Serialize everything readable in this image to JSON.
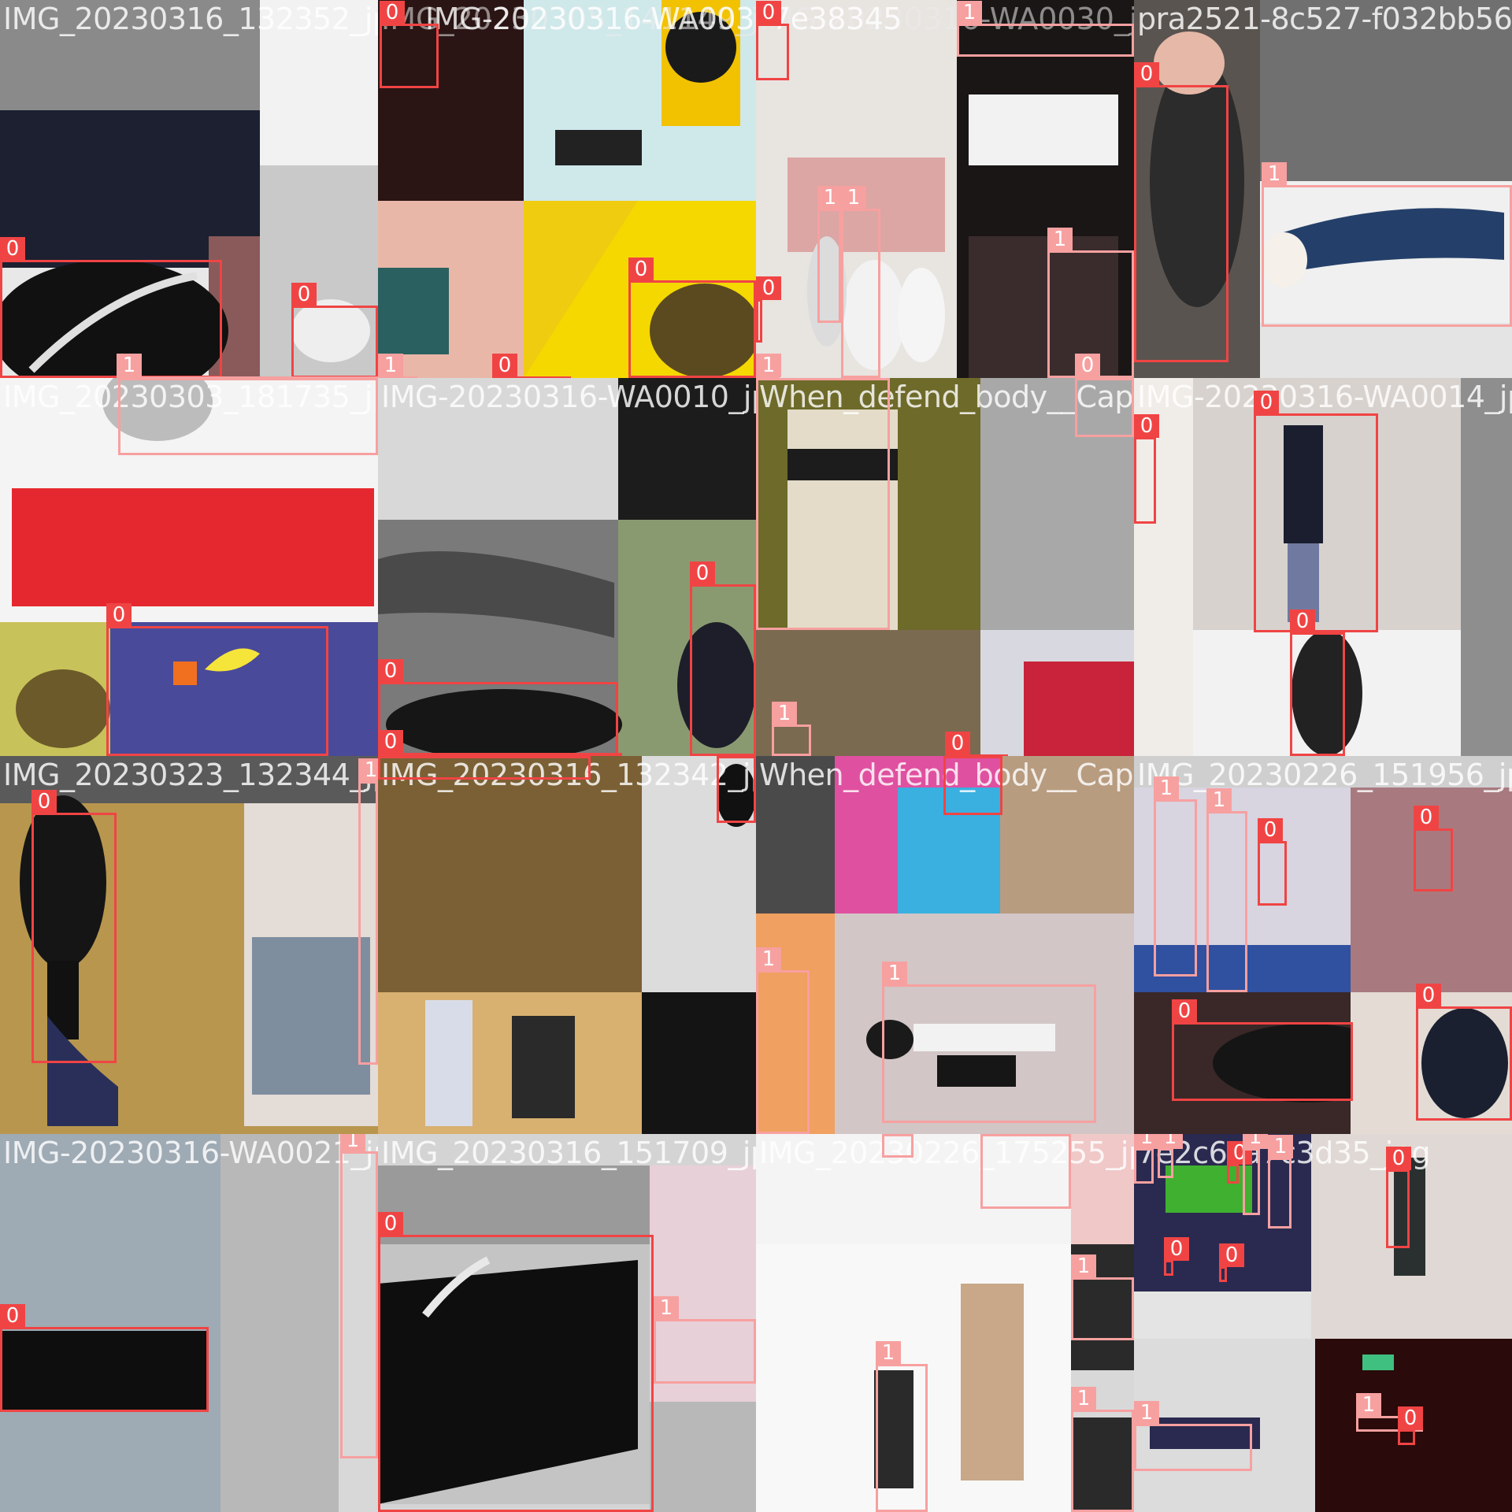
{
  "mosaic": {
    "tiles": [
      {
        "filenames": [
          "IMG_20230316_132352_jpg"
        ],
        "boxes": [
          {
            "class_label": "0"
          },
          {
            "class_label": "0"
          },
          {
            "class_label": "1"
          }
        ]
      },
      {
        "filenames": [
          "IMG_20230305_141149_jpg",
          "IMG-20230316-WA0030"
        ],
        "boxes": [
          {
            "class_label": "0"
          },
          {
            "class_label": "0"
          },
          {
            "class_label": "1"
          },
          {
            "class_label": "0"
          }
        ]
      },
      {
        "filenames": [
          "IMG-20230316-WA0030_jpg",
          "7e38345"
        ],
        "boxes": [
          {
            "class_label": "0"
          },
          {
            "class_label": "1"
          },
          {
            "class_label": "1"
          },
          {
            "class_label": "1"
          },
          {
            "class_label": "1"
          },
          {
            "class_label": "0"
          },
          {
            "class_label": "1"
          },
          {
            "class_label": "0"
          }
        ]
      },
      {
        "filenames": [
          "pra2521-8c527-f032bb56-11ec"
        ],
        "boxes": [
          {
            "class_label": "0"
          },
          {
            "class_label": "1"
          }
        ]
      },
      {
        "filenames": [
          "IMG_20230303_181735_jpg"
        ],
        "boxes": [
          {
            "class_label": "1"
          },
          {
            "class_label": "0"
          }
        ]
      },
      {
        "filenames": [
          "IMG-20230316-WA0010_jpg"
        ],
        "boxes": [
          {
            "class_label": "0"
          },
          {
            "class_label": "0"
          },
          {
            "class_label": "0"
          }
        ]
      },
      {
        "filenames": [
          "When_defend_body__Capoeira"
        ],
        "boxes": [
          {
            "class_label": "1"
          },
          {
            "class_label": "0"
          }
        ]
      },
      {
        "filenames": [
          "IMG-20230316-WA0014_jpg"
        ],
        "boxes": [
          {
            "class_label": "0"
          },
          {
            "class_label": "0"
          },
          {
            "class_label": "0"
          }
        ]
      },
      {
        "filenames": [
          "IMG_20230323_132344_jpg"
        ],
        "boxes": [
          {
            "class_label": "0"
          },
          {
            "class_label": "1"
          }
        ]
      },
      {
        "filenames": [
          "IMG_20230316_132342_jpg"
        ],
        "boxes": [
          {
            "class_label": "0"
          }
        ]
      },
      {
        "filenames": [
          "When_defend_body__Capoeira"
        ],
        "boxes": [
          {
            "class_label": "0"
          },
          {
            "class_label": "1"
          },
          {
            "class_label": "1"
          }
        ]
      },
      {
        "filenames": [
          "IMG_20230226_151956_jpg"
        ],
        "boxes": [
          {
            "class_label": "1"
          },
          {
            "class_label": "1"
          },
          {
            "class_label": "0"
          },
          {
            "class_label": "0"
          },
          {
            "class_label": "0"
          },
          {
            "class_label": "0"
          }
        ]
      },
      {
        "filenames": [
          "IMG-20230316-WA0021_jpg"
        ],
        "boxes": [
          {
            "class_label": "0"
          },
          {
            "class_label": "1"
          }
        ]
      },
      {
        "filenames": [
          "IMG_20230316_151709_jpg"
        ],
        "boxes": [
          {
            "class_label": "0"
          },
          {
            "class_label": "1"
          }
        ]
      },
      {
        "filenames": [
          "IMG_20230226_175255_jpg"
        ],
        "boxes": [
          {
            "class_label": "1"
          },
          {
            "class_label": "1"
          },
          {
            "class_label": "1"
          },
          {
            "class_label": "1"
          },
          {
            "class_label": "1"
          }
        ]
      },
      {
        "filenames": [
          "7e2c6ca7c3d35_jpg"
        ],
        "boxes": [
          {
            "class_label": "1"
          },
          {
            "class_label": "1"
          },
          {
            "class_label": "0"
          },
          {
            "class_label": "1"
          },
          {
            "class_label": "1"
          },
          {
            "class_label": "0"
          },
          {
            "class_label": "0"
          },
          {
            "class_label": "0"
          },
          {
            "class_label": "1"
          },
          {
            "class_label": "1"
          },
          {
            "class_label": "0"
          }
        ]
      }
    ]
  }
}
